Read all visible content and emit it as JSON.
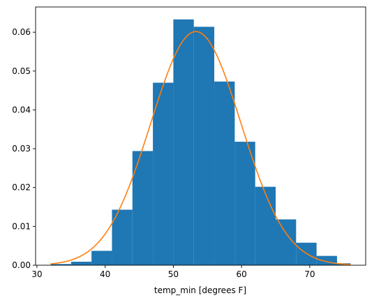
{
  "chart_data": {
    "type": "bar",
    "xlabel": "temp_min [degrees F]",
    "ylabel": "",
    "title": "",
    "xlim": [
      29.8,
      78.2
    ],
    "ylim": [
      0,
      0.0665
    ],
    "xticks": [
      30,
      40,
      50,
      60,
      70
    ],
    "yticks": [
      0.0,
      0.01,
      0.02,
      0.03,
      0.04,
      0.05,
      0.06
    ],
    "xtick_labels": [
      "30",
      "40",
      "50",
      "60",
      "70"
    ],
    "ytick_labels": [
      "0.00",
      "0.01",
      "0.02",
      "0.03",
      "0.04",
      "0.05",
      "0.06"
    ],
    "bins": [
      {
        "x0": 32.0,
        "x1": 35.0,
        "value": 0.0003
      },
      {
        "x0": 35.0,
        "x1": 38.0,
        "value": 0.0009
      },
      {
        "x0": 38.0,
        "x1": 41.0,
        "value": 0.0037
      },
      {
        "x0": 41.0,
        "x1": 44.0,
        "value": 0.0143
      },
      {
        "x0": 44.0,
        "x1": 47.0,
        "value": 0.0294
      },
      {
        "x0": 47.0,
        "x1": 50.0,
        "value": 0.047
      },
      {
        "x0": 50.0,
        "x1": 53.0,
        "value": 0.0633
      },
      {
        "x0": 53.0,
        "x1": 56.0,
        "value": 0.0614
      },
      {
        "x0": 56.0,
        "x1": 59.0,
        "value": 0.0473
      },
      {
        "x0": 59.0,
        "x1": 62.0,
        "value": 0.0318
      },
      {
        "x0": 62.0,
        "x1": 65.0,
        "value": 0.0202
      },
      {
        "x0": 65.0,
        "x1": 68.0,
        "value": 0.0118
      },
      {
        "x0": 68.0,
        "x1": 71.0,
        "value": 0.0058
      },
      {
        "x0": 71.0,
        "x1": 74.0,
        "value": 0.0024
      },
      {
        "x0": 74.0,
        "x1": 76.0,
        "value": 0.0005
      }
    ],
    "curve": {
      "type": "normal-pdf",
      "mean": 53.3,
      "std": 6.63,
      "x_range": [
        32,
        76
      ]
    },
    "colors": {
      "bars": "#1f77b4",
      "curve": "#ff7f0e",
      "axes": "#000000",
      "background": "#ffffff"
    },
    "grid": false,
    "legend": "none"
  }
}
